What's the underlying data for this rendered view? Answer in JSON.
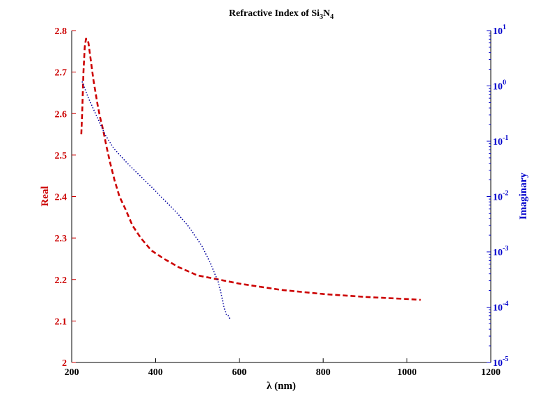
{
  "chart_data": {
    "type": "line",
    "title": {
      "prefix": "Refractive Index of Si",
      "sub1": "3",
      "mid": "N",
      "sub2": "4"
    },
    "xlabel": "λ (nm)",
    "ylabel_left": "Real",
    "ylabel_right": "Imaginary",
    "xlim": [
      200,
      1200
    ],
    "ylim_left": [
      2.0,
      2.8
    ],
    "ylim_right_log10": [
      -5,
      1
    ],
    "x_ticks": [
      "200",
      "400",
      "600",
      "800",
      "1000",
      "1200"
    ],
    "y_left_ticks": [
      "2",
      "2.1",
      "2.2",
      "2.3",
      "2.4",
      "2.5",
      "2.6",
      "2.7",
      "2.8"
    ],
    "y_right_ticks": [
      {
        "base": "10",
        "exp": "1"
      },
      {
        "base": "10",
        "exp": "0"
      },
      {
        "base": "10",
        "exp": "-1"
      },
      {
        "base": "10",
        "exp": "-2"
      },
      {
        "base": "10",
        "exp": "-3"
      },
      {
        "base": "10",
        "exp": "-4"
      },
      {
        "base": "10",
        "exp": "-5"
      }
    ],
    "colors": {
      "real": "#cc0000",
      "imaginary": "#00009e",
      "right_axis": "#0000cc",
      "axis": "#000000"
    },
    "series": [
      {
        "axis": "left",
        "style": "dashed",
        "x": [
          223,
          225,
          228,
          231,
          234,
          237,
          240,
          244,
          248,
          252,
          257,
          262,
          268,
          275,
          283,
          292,
          302,
          314,
          328,
          345,
          365,
          390,
          420,
          455,
          500,
          550,
          600,
          700,
          800,
          900,
          1000,
          1033
        ],
        "y": [
          2.55,
          2.6,
          2.7,
          2.76,
          2.78,
          2.78,
          2.77,
          2.74,
          2.71,
          2.68,
          2.65,
          2.62,
          2.59,
          2.56,
          2.52,
          2.48,
          2.44,
          2.4,
          2.37,
          2.33,
          2.3,
          2.27,
          2.25,
          2.23,
          2.21,
          2.2,
          2.19,
          2.175,
          2.165,
          2.158,
          2.153,
          2.151
        ]
      },
      {
        "axis": "right",
        "style": "dotted",
        "x": [
          225,
          240,
          260,
          280,
          300,
          330,
          360,
          390,
          420,
          450,
          480,
          510,
          530,
          550,
          558,
          562,
          566,
          570,
          573,
          575,
          577
        ],
        "y": [
          1.2,
          0.6,
          0.28,
          0.13,
          0.075,
          0.042,
          0.025,
          0.015,
          0.0088,
          0.0052,
          0.0028,
          0.0013,
          0.00065,
          0.00028,
          0.00016,
          0.00011,
          8.57e-05,
          7.1e-05,
          7.1e-05,
          6.8e-05,
          6.13e-05
        ]
      }
    ]
  }
}
